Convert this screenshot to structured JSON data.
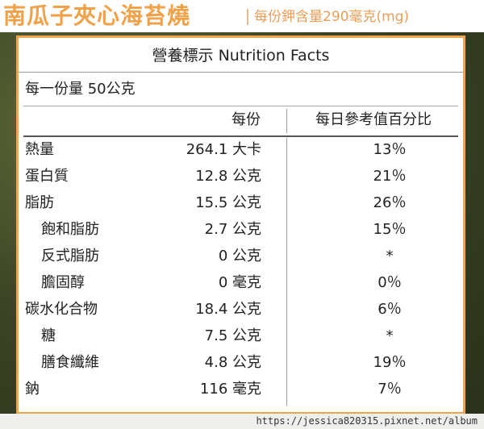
{
  "header": {
    "title": "南瓜子夾心海苔燒",
    "subtitle": "每份鉀含量290毫克(mg)"
  },
  "label": {
    "title": "營養標示 Nutrition Facts",
    "serving": "每一份量 50公克",
    "col_per_serving": "每份",
    "col_daily_value": "每日參考值百分比",
    "rows": [
      {
        "name": "熱量",
        "amount": "264.1 大卡",
        "dv": "13％",
        "indent": 0
      },
      {
        "name": "蛋白質",
        "amount": "12.8 公克",
        "dv": "21％",
        "indent": 0
      },
      {
        "name": "脂肪",
        "amount": "15.5 公克",
        "dv": "26％",
        "indent": 0
      },
      {
        "name": "飽和脂肪",
        "amount": "2.7 公克",
        "dv": "15％",
        "indent": 1
      },
      {
        "name": "反式脂肪",
        "amount": "0 公克",
        "dv": "*",
        "indent": 1
      },
      {
        "name": "膽固醇",
        "amount": "0 毫克",
        "dv": "0％",
        "indent": 1
      },
      {
        "name": "碳水化合物",
        "amount": "18.4 公克",
        "dv": "6％",
        "indent": 0
      },
      {
        "name": "糖",
        "amount": "7.5 公克",
        "dv": "*",
        "indent": 1
      },
      {
        "name": "膳食纖維",
        "amount": "4.8 公克",
        "dv": "19％",
        "indent": 1
      },
      {
        "name": "鈉",
        "amount": "116 毫克",
        "dv": "7％",
        "indent": 0
      }
    ]
  },
  "footer": {
    "url": "https://jessica820315.pixnet.net/album"
  }
}
